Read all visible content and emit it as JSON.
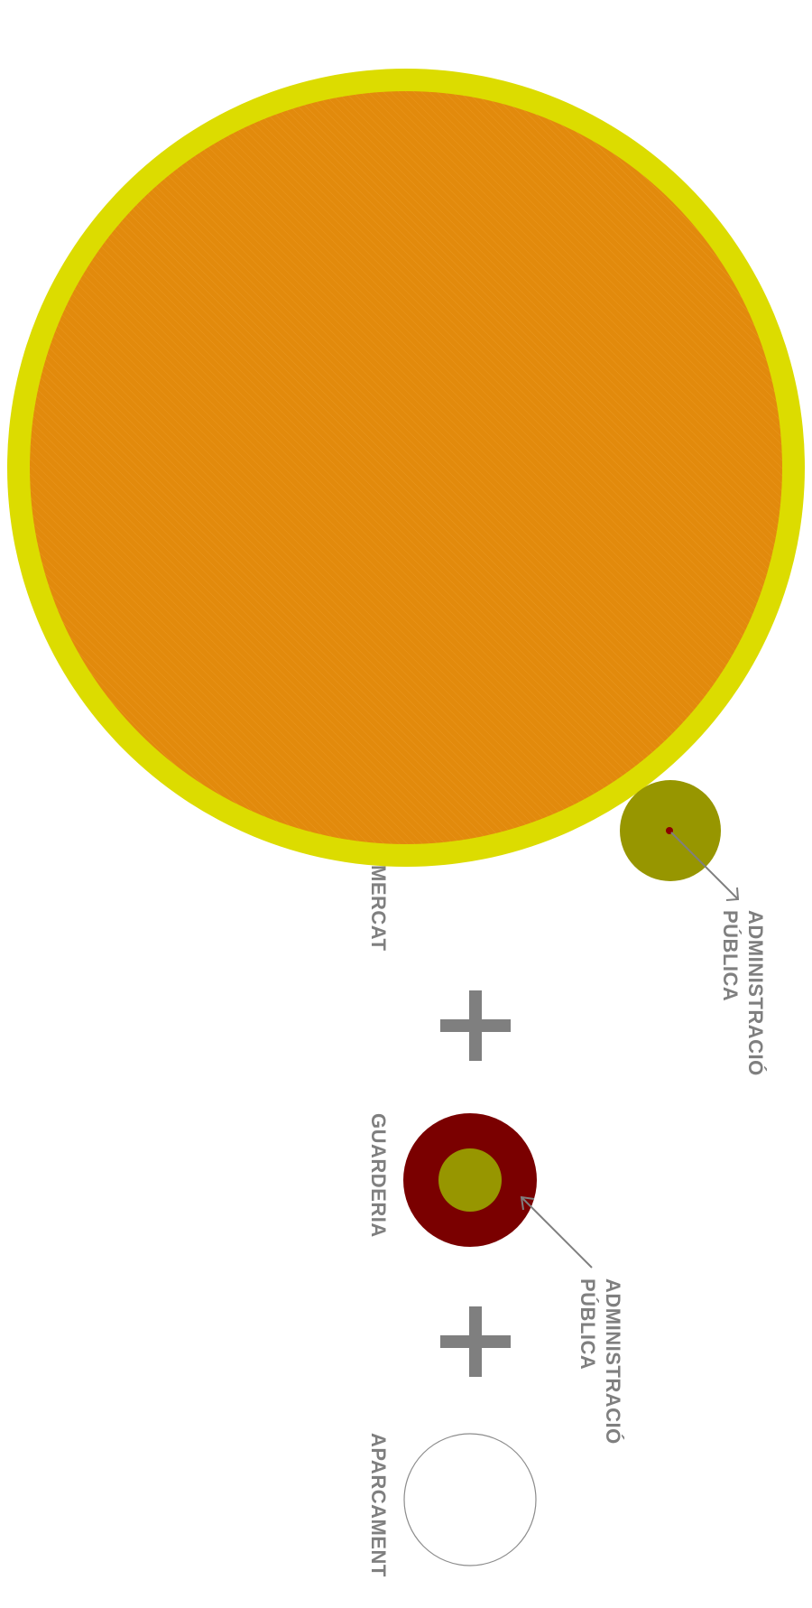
{
  "colors": {
    "mercat_ring": "#dcdc00",
    "mercat_fill": "#e28a0c",
    "admin_fill": "#979600",
    "guarderia_ring": "#7a0000",
    "admin_dot": "#8b0000",
    "aparcament_stroke": "#8c8c8c",
    "label_gray": "#7f7f7f"
  },
  "labels": {
    "mercat": "MERCAT",
    "guarderia": "GUARDERIA",
    "aparcament": "APARCAMENT",
    "admin1_line1": "ADMINISTRACIÓ",
    "admin1_line2": "PÚBLICA",
    "admin2_line1": "ADMINISTRACIÓ",
    "admin2_line2": "PÚBLICA"
  },
  "operators": [
    "+",
    "+"
  ]
}
